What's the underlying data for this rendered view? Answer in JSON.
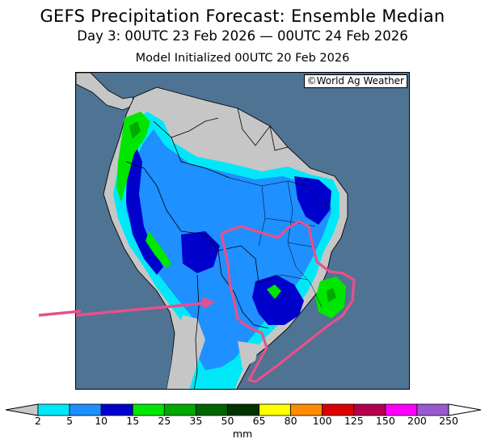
{
  "title": "GEFS Precipitation Forecast: Ensemble Median",
  "subtitle": "Day 3: 00UTC 23 Feb 2026 — 00UTC 24 Feb 2026",
  "init_line": "Model Initialized 00UTC 20 Feb 2026",
  "credit": "©World Ag Weather",
  "colorbar": {
    "unit": "mm",
    "labels": [
      "2",
      "5",
      "10",
      "15",
      "25",
      "35",
      "50",
      "65",
      "80",
      "100",
      "125",
      "150",
      "200",
      "250"
    ],
    "colors": [
      "#00e8f8",
      "#1e90ff",
      "#0000cd",
      "#00e600",
      "#00a800",
      "#006400",
      "#003300",
      "#ffff00",
      "#ff8c00",
      "#dd0000",
      "#b4004c",
      "#ff00ff",
      "#9b59d0"
    ],
    "under_color": "#c8c8c8",
    "over_color": "#ffffff"
  },
  "palette": {
    "ocean": "#4f7393",
    "land_dry": "#c6c6c6",
    "annotation": "#e8508c"
  }
}
